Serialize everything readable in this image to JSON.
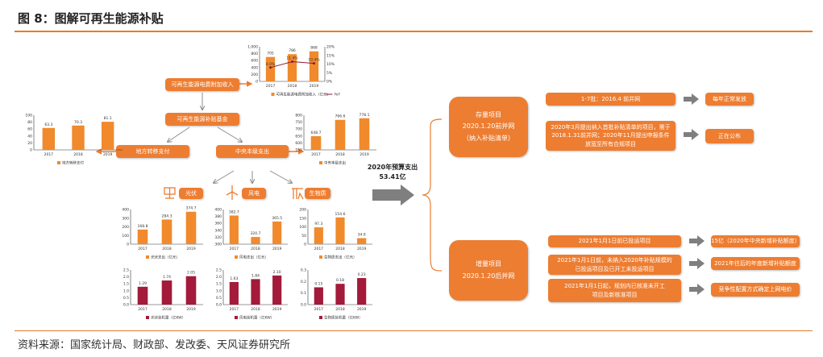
{
  "title": "图 8：图解可再生能源补贴",
  "footer": "资料来源：国家统计局、财政部、发改委、天风证券研究所",
  "colors": {
    "accent": "#ed7d31",
    "bar": "#f08a2c",
    "capacity_bar": "#a31a3a",
    "arrow": "#8c8c8c"
  },
  "flow": {
    "surcharge": "可再生能源电费附加收入",
    "fund": "可再生能源补贴基金",
    "local": "地方转移支付",
    "central": "中央本级支出",
    "solar": "光伏",
    "wind": "风电",
    "biomass": "生物质",
    "budget_label": "2020年预算支出",
    "budget_value": "53.41亿"
  },
  "stock": {
    "title": "存量项目",
    "line2": "2020.1.20前并网",
    "line3": "（纳入补贴清单）",
    "items": [
      {
        "text": "1-7批：2016.4 前并网",
        "result": "每年正常发放"
      },
      {
        "text": "2020年3月提出纳入首批补贴清单的项目，需于2018.1.31前并网；2020年11月提出申报条件放宽至所有合规项目",
        "result": "正在公布"
      }
    ]
  },
  "incremental": {
    "title": "增量项目",
    "line2": "2020.1.20后并网",
    "items": [
      {
        "text": "2021年1月1日前已投运项目",
        "result": "15亿（2020年中央新增补贴额度）"
      },
      {
        "text": "2021年1月1日前，未纳入2020年补贴规模的已投运项目及已开工未投运项目",
        "result": "2021年往后的年度新增补贴额度"
      },
      {
        "text": "2021年1月1日起，规划内已核准未开工项目及新核准项目",
        "result": "竞争性配置方式确定上网电价"
      }
    ]
  },
  "chart_data": [
    {
      "id": "surcharge",
      "type": "bar",
      "categories": [
        "2017",
        "2018",
        "2019"
      ],
      "values": [
        705,
        786,
        868
      ],
      "labels": [
        "705",
        "786",
        "868"
      ],
      "ylim": [
        0,
        1000
      ],
      "yticks": [
        "0",
        "200",
        "400",
        "600",
        "800",
        "1,000"
      ],
      "series_name": "可再生能源电费附加收入（亿元）",
      "line": {
        "name": "YoY",
        "values": [
          8.0,
          11.4,
          10.4
        ],
        "labels": [
          "8.0%",
          "11.4%",
          "10.4%"
        ],
        "ylim": [
          0,
          20
        ],
        "yticks": [
          "0%",
          "5%",
          "10%",
          "15%",
          "20%"
        ]
      }
    },
    {
      "id": "local",
      "type": "bar",
      "categories": [
        "2017",
        "2018",
        "2019"
      ],
      "values": [
        63.3,
        70.3,
        81.1
      ],
      "labels": [
        "63.3",
        "70.3",
        "81.1"
      ],
      "ylim": [
        0,
        100
      ],
      "yticks": [
        "0",
        "20",
        "40",
        "60",
        "80",
        "100"
      ],
      "series_name": "地方转移支付"
    },
    {
      "id": "central",
      "type": "bar",
      "categories": [
        "2017",
        "2018",
        "2019"
      ],
      "values": [
        648.7,
        766.6,
        778.1
      ],
      "labels": [
        "648.7",
        "766.6",
        "778.1"
      ],
      "ylim": [
        550,
        800
      ],
      "yticks": [
        "550",
        "600",
        "650",
        "700",
        "750",
        "800"
      ],
      "series_name": "中央本级支出"
    },
    {
      "id": "solar_spend",
      "type": "bar",
      "categories": [
        "2017",
        "2018",
        "2019"
      ],
      "values": [
        168.8,
        284.3,
        374.7
      ],
      "labels": [
        "168.8",
        "284.3",
        "374.7"
      ],
      "ylim": [
        0,
        400
      ],
      "yticks": [
        "0",
        "100",
        "200",
        "300",
        "400"
      ],
      "series_name": "光伏支出（亿元）"
    },
    {
      "id": "wind_spend",
      "type": "bar",
      "categories": [
        "2017",
        "2018",
        "2019"
      ],
      "values": [
        382.7,
        320.7,
        365.5
      ],
      "labels": [
        "382.7",
        "320.7",
        "365.5"
      ],
      "ylim": [
        300,
        400
      ],
      "yticks": [
        "300",
        "320",
        "340",
        "360",
        "380",
        "400"
      ],
      "series_name": "风电支出（亿元）"
    },
    {
      "id": "bio_spend",
      "type": "bar",
      "categories": [
        "2017",
        "2018",
        "2019"
      ],
      "values": [
        97.3,
        154.6,
        34.9
      ],
      "labels": [
        "97.3",
        "154.6",
        "34.9"
      ],
      "ylim": [
        0,
        200
      ],
      "yticks": [
        "0",
        "50",
        "100",
        "150",
        "200"
      ],
      "series_name": "生物质支出（亿元）"
    },
    {
      "id": "solar_cap",
      "type": "bar",
      "categories": [
        "2017",
        "2018",
        "2019"
      ],
      "values": [
        1.29,
        1.74,
        2.05
      ],
      "labels": [
        "1.29",
        "1.74",
        "2.05"
      ],
      "ylim": [
        0,
        2.5
      ],
      "yticks": [
        "0.0",
        "0.5",
        "1.0",
        "1.5",
        "2.0",
        "2.5"
      ],
      "series_name": "光伏装机量（亿KW）"
    },
    {
      "id": "wind_cap",
      "type": "bar",
      "categories": [
        "2017",
        "2018",
        "2019"
      ],
      "values": [
        1.63,
        1.84,
        2.1
      ],
      "labels": [
        "1.63",
        "1.84",
        "2.10"
      ],
      "ylim": [
        0,
        2.5
      ],
      "yticks": [
        "0.0",
        "0.5",
        "1.0",
        "1.5",
        "2.0",
        "2.5"
      ],
      "series_name": "风电装机量（亿KW）"
    },
    {
      "id": "bio_cap",
      "type": "bar",
      "categories": [
        "2017",
        "2018",
        "2019"
      ],
      "values": [
        0.15,
        0.18,
        0.23
      ],
      "labels": [
        "0.15",
        "0.18",
        "0.23"
      ],
      "ylim": [
        0,
        0.3
      ],
      "yticks": [
        "0.0",
        "0.1",
        "0.2",
        "0.3"
      ],
      "series_name": "生物质装机量（亿KW）"
    }
  ]
}
